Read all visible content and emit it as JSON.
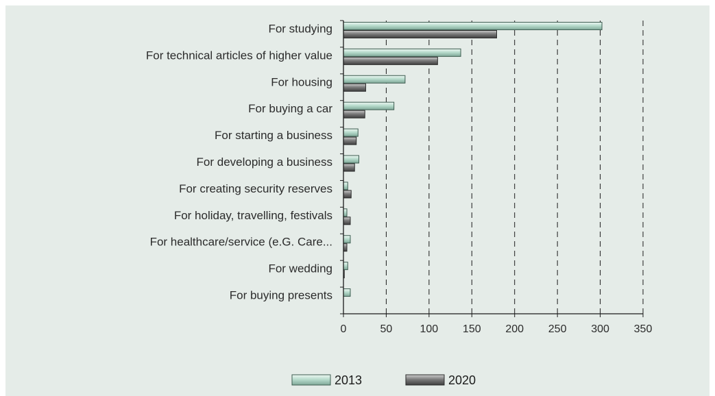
{
  "chart_data": {
    "type": "bar",
    "orientation": "horizontal",
    "categories": [
      "For studying",
      "For technical articles of higher value",
      "For housing",
      "For buying a car",
      "For starting a business",
      "For developing a business",
      "For creating security reserves",
      "For holiday, travelling, festivals",
      "For healthcare/service (e.G. Care...",
      "For wedding",
      "For buying presents"
    ],
    "series": [
      {
        "name": "2013",
        "color": "#a8cfc0",
        "values": [
          302,
          137,
          72,
          59,
          17,
          18,
          5,
          4,
          8,
          5,
          8
        ]
      },
      {
        "name": "2020",
        "color": "#7a7a7a",
        "values": [
          179,
          110,
          26,
          25,
          15,
          13,
          9,
          8,
          4,
          1,
          0
        ]
      }
    ],
    "xlim": [
      0,
      350
    ],
    "xticks": [
      "0",
      "50",
      "100",
      "150",
      "200",
      "250",
      "300",
      "350"
    ],
    "grid": "vertical-dashed",
    "legend_position": "bottom",
    "title": "",
    "xlabel": "",
    "ylabel": ""
  }
}
